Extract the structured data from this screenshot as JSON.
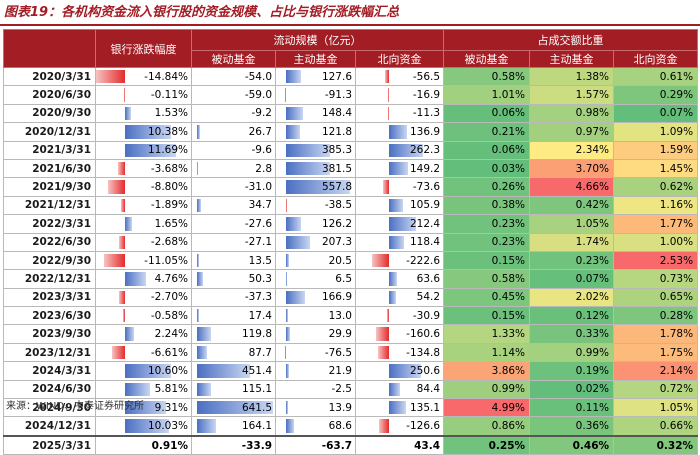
{
  "title": "图表19：各机构资金流入银行股的资金规模、占比与银行涨跌幅汇总",
  "headers": {
    "bank_change": "银行涨跌幅度",
    "flow_group": "流动规模（亿元）",
    "share_group": "占成交额比重",
    "passive": "被动基金",
    "active": "主动基金",
    "north": "北向资金"
  },
  "colors": {
    "header_bg": "#a31d24",
    "bar_pos": "#4a6fc2",
    "bar_neg": "#e42b2b",
    "heat_low": "#63be7b",
    "heat_mid": "#ffeb84",
    "heat_high": "#f8696b"
  },
  "rows": [
    {
      "date": "2020/3/31",
      "bank": "-14.84%",
      "bank_v": -14.84,
      "passive": "-54.0",
      "passive_v": -54.0,
      "active": "127.6",
      "active_v": 127.6,
      "north": "-56.5",
      "north_v": -56.5,
      "sp": "0.58%",
      "sp_v": 0.58,
      "sa": "1.38%",
      "sa_v": 1.38,
      "sn": "0.61%",
      "sn_v": 0.61
    },
    {
      "date": "2020/6/30",
      "bank": "-0.11%",
      "bank_v": -0.11,
      "passive": "-59.0",
      "passive_v": -59.0,
      "active": "-91.3",
      "active_v": -91.3,
      "north": "-16.9",
      "north_v": -16.9,
      "sp": "1.01%",
      "sp_v": 1.01,
      "sa": "1.57%",
      "sa_v": 1.57,
      "sn": "0.29%",
      "sn_v": 0.29
    },
    {
      "date": "2020/9/30",
      "bank": "1.53%",
      "bank_v": 1.53,
      "passive": "-9.2",
      "passive_v": -9.2,
      "active": "148.4",
      "active_v": 148.4,
      "north": "-11.3",
      "north_v": -11.3,
      "sp": "0.06%",
      "sp_v": 0.06,
      "sa": "0.98%",
      "sa_v": 0.98,
      "sn": "0.07%",
      "sn_v": 0.07
    },
    {
      "date": "2020/12/31",
      "bank": "10.38%",
      "bank_v": 10.38,
      "passive": "26.7",
      "passive_v": 26.7,
      "active": "121.8",
      "active_v": 121.8,
      "north": "136.9",
      "north_v": 136.9,
      "sp": "0.21%",
      "sp_v": 0.21,
      "sa": "0.97%",
      "sa_v": 0.97,
      "sn": "1.09%",
      "sn_v": 1.09
    },
    {
      "date": "2021/3/31",
      "bank": "11.69%",
      "bank_v": 11.69,
      "passive": "-9.6",
      "passive_v": -9.6,
      "active": "385.3",
      "active_v": 385.3,
      "north": "262.3",
      "north_v": 262.3,
      "sp": "0.06%",
      "sp_v": 0.06,
      "sa": "2.34%",
      "sa_v": 2.34,
      "sn": "1.59%",
      "sn_v": 1.59
    },
    {
      "date": "2021/6/30",
      "bank": "-3.68%",
      "bank_v": -3.68,
      "passive": "2.8",
      "passive_v": 2.8,
      "active": "381.5",
      "active_v": 381.5,
      "north": "149.2",
      "north_v": 149.2,
      "sp": "0.03%",
      "sp_v": 0.03,
      "sa": "3.70%",
      "sa_v": 3.7,
      "sn": "1.45%",
      "sn_v": 1.45
    },
    {
      "date": "2021/9/30",
      "bank": "-8.80%",
      "bank_v": -8.8,
      "passive": "-31.0",
      "passive_v": -31.0,
      "active": "557.8",
      "active_v": 557.8,
      "north": "-73.6",
      "north_v": -73.6,
      "sp": "0.26%",
      "sp_v": 0.26,
      "sa": "4.66%",
      "sa_v": 4.66,
      "sn": "0.62%",
      "sn_v": 0.62
    },
    {
      "date": "2021/12/31",
      "bank": "-1.89%",
      "bank_v": -1.89,
      "passive": "34.7",
      "passive_v": 34.7,
      "active": "-38.5",
      "active_v": -38.5,
      "north": "105.9",
      "north_v": 105.9,
      "sp": "0.38%",
      "sp_v": 0.38,
      "sa": "0.42%",
      "sa_v": 0.42,
      "sn": "1.16%",
      "sn_v": 1.16
    },
    {
      "date": "2022/3/31",
      "bank": "1.65%",
      "bank_v": 1.65,
      "passive": "-27.6",
      "passive_v": -27.6,
      "active": "126.2",
      "active_v": 126.2,
      "north": "212.4",
      "north_v": 212.4,
      "sp": "0.23%",
      "sp_v": 0.23,
      "sa": "1.05%",
      "sa_v": 1.05,
      "sn": "1.77%",
      "sn_v": 1.77
    },
    {
      "date": "2022/6/30",
      "bank": "-2.68%",
      "bank_v": -2.68,
      "passive": "-27.1",
      "passive_v": -27.1,
      "active": "207.3",
      "active_v": 207.3,
      "north": "118.4",
      "north_v": 118.4,
      "sp": "0.23%",
      "sp_v": 0.23,
      "sa": "1.74%",
      "sa_v": 1.74,
      "sn": "1.00%",
      "sn_v": 1.0
    },
    {
      "date": "2022/9/30",
      "bank": "-11.05%",
      "bank_v": -11.05,
      "passive": "13.5",
      "passive_v": 13.5,
      "active": "20.5",
      "active_v": 20.5,
      "north": "-222.6",
      "north_v": -222.6,
      "sp": "0.15%",
      "sp_v": 0.15,
      "sa": "0.23%",
      "sa_v": 0.23,
      "sn": "2.53%",
      "sn_v": 2.53
    },
    {
      "date": "2022/12/31",
      "bank": "4.76%",
      "bank_v": 4.76,
      "passive": "50.3",
      "passive_v": 50.3,
      "active": "6.5",
      "active_v": 6.5,
      "north": "63.6",
      "north_v": 63.6,
      "sp": "0.58%",
      "sp_v": 0.58,
      "sa": "0.07%",
      "sa_v": 0.07,
      "sn": "0.73%",
      "sn_v": 0.73
    },
    {
      "date": "2023/3/31",
      "bank": "-2.70%",
      "bank_v": -2.7,
      "passive": "-37.3",
      "passive_v": -37.3,
      "active": "166.9",
      "active_v": 166.9,
      "north": "54.2",
      "north_v": 54.2,
      "sp": "0.45%",
      "sp_v": 0.45,
      "sa": "2.02%",
      "sa_v": 2.02,
      "sn": "0.65%",
      "sn_v": 0.65
    },
    {
      "date": "2023/6/30",
      "bank": "-0.58%",
      "bank_v": -0.58,
      "passive": "17.4",
      "passive_v": 17.4,
      "active": "13.0",
      "active_v": 13.0,
      "north": "-30.9",
      "north_v": -30.9,
      "sp": "0.15%",
      "sp_v": 0.15,
      "sa": "0.12%",
      "sa_v": 0.12,
      "sn": "0.28%",
      "sn_v": 0.28
    },
    {
      "date": "2023/9/30",
      "bank": "2.24%",
      "bank_v": 2.24,
      "passive": "119.8",
      "passive_v": 119.8,
      "active": "29.9",
      "active_v": 29.9,
      "north": "-160.6",
      "north_v": -160.6,
      "sp": "1.33%",
      "sp_v": 1.33,
      "sa": "0.33%",
      "sa_v": 0.33,
      "sn": "1.78%",
      "sn_v": 1.78
    },
    {
      "date": "2023/12/31",
      "bank": "-6.61%",
      "bank_v": -6.61,
      "passive": "87.7",
      "passive_v": 87.7,
      "active": "-76.5",
      "active_v": -76.5,
      "north": "-134.8",
      "north_v": -134.8,
      "sp": "1.14%",
      "sp_v": 1.14,
      "sa": "0.99%",
      "sa_v": 0.99,
      "sn": "1.75%",
      "sn_v": 1.75
    },
    {
      "date": "2024/3/31",
      "bank": "10.60%",
      "bank_v": 10.6,
      "passive": "451.4",
      "passive_v": 451.4,
      "active": "21.9",
      "active_v": 21.9,
      "north": "250.6",
      "north_v": 250.6,
      "sp": "3.86%",
      "sp_v": 3.86,
      "sa": "0.19%",
      "sa_v": 0.19,
      "sn": "2.14%",
      "sn_v": 2.14
    },
    {
      "date": "2024/6/30",
      "bank": "5.81%",
      "bank_v": 5.81,
      "passive": "115.1",
      "passive_v": 115.1,
      "active": "-2.5",
      "active_v": -2.5,
      "north": "84.4",
      "north_v": 84.4,
      "sp": "0.99%",
      "sp_v": 0.99,
      "sa": "0.02%",
      "sa_v": 0.02,
      "sn": "0.72%",
      "sn_v": 0.72
    },
    {
      "date": "2024/9/30",
      "bank": "9.31%",
      "bank_v": 9.31,
      "passive": "641.5",
      "passive_v": 641.5,
      "active": "13.9",
      "active_v": 13.9,
      "north": "135.1",
      "north_v": 135.1,
      "sp": "4.99%",
      "sp_v": 4.99,
      "sa": "0.11%",
      "sa_v": 0.11,
      "sn": "1.05%",
      "sn_v": 1.05
    },
    {
      "date": "2024/12/31",
      "bank": "10.03%",
      "bank_v": 10.03,
      "passive": "164.1",
      "passive_v": 164.1,
      "active": "68.6",
      "active_v": 68.6,
      "north": "-126.6",
      "north_v": -126.6,
      "sp": "0.86%",
      "sp_v": 0.86,
      "sa": "0.36%",
      "sa_v": 0.36,
      "sn": "0.66%",
      "sn_v": 0.66
    }
  ],
  "total": {
    "date": "2025/3/31",
    "bank": "0.91%",
    "bank_v": 0.91,
    "passive": "-33.9",
    "passive_v": -33.9,
    "active": "-63.7",
    "active_v": -63.7,
    "north": "43.4",
    "north_v": 43.4,
    "sp": "0.25%",
    "sp_v": 0.25,
    "sa": "0.46%",
    "sa_v": 0.46,
    "sn": "0.32%",
    "sn_v": 0.32
  },
  "source": "来源：WIND、中泰证券研究所"
}
